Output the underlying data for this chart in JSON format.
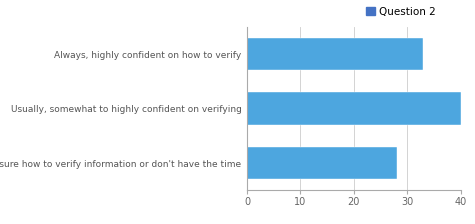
{
  "categories": [
    "Always, highly confident on how to verify",
    "Usually, somewhat to highly confident on verifying",
    "Sometimes but not always sure how to verify information or don't have the time"
  ],
  "values": [
    33,
    40,
    28
  ],
  "bar_color": "#4da6df",
  "bar_edge_color": "#ffffff",
  "legend_label": "Question 2",
  "legend_color": "#4472c4",
  "xlim": [
    0,
    40
  ],
  "xticks": [
    0,
    10,
    20,
    30,
    40
  ],
  "background_color": "#ffffff",
  "grid_color": "#cccccc",
  "label_fontsize": 6.5,
  "tick_fontsize": 7,
  "legend_fontsize": 7.5
}
